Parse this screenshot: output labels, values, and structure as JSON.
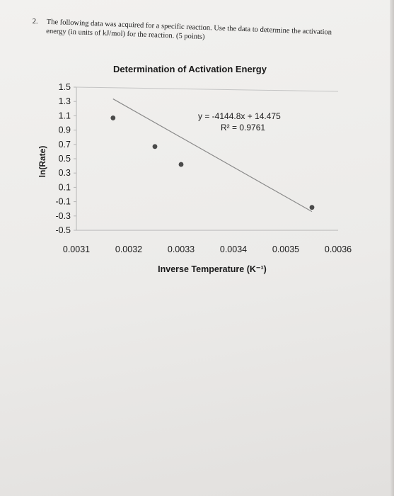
{
  "question": {
    "number": "2.",
    "line1": "The following data was acquired for a specific reaction. Use the data to determine the activation",
    "line2": "energy (in units of kJ/mol) for the reaction. (5 points)"
  },
  "chart_data": {
    "type": "scatter",
    "title": "Determination of Activation Energy",
    "xlabel": "Inverse Temperature (K⁻¹)",
    "ylabel": "ln(Rate)",
    "xlim": [
      0.0031,
      0.0036
    ],
    "ylim": [
      -0.5,
      1.5
    ],
    "x_ticks": [
      "0.0031",
      "0.0032",
      "0.0033",
      "0.0034",
      "0.0035",
      "0.0036"
    ],
    "y_ticks": [
      "1.5",
      "1.3",
      "1.1",
      "0.9",
      "0.7",
      "0.5",
      "0.3",
      "0.1",
      "-0.1",
      "-0.3",
      "-0.5"
    ],
    "grid": false,
    "points": [
      {
        "x": 0.00317,
        "y": 1.07
      },
      {
        "x": 0.00325,
        "y": 0.67
      },
      {
        "x": 0.0033,
        "y": 0.42
      },
      {
        "x": 0.00355,
        "y": -0.18
      }
    ],
    "trendline": {
      "slope": -4144.8,
      "intercept": 14.475,
      "equation": "y = -4144.8x + 14.475",
      "r_squared": "R² = 0.9761"
    },
    "colors": {
      "marker": "#4a4a4a",
      "trendline": "#8a8a8a",
      "axis": "#b5b5b5"
    }
  }
}
